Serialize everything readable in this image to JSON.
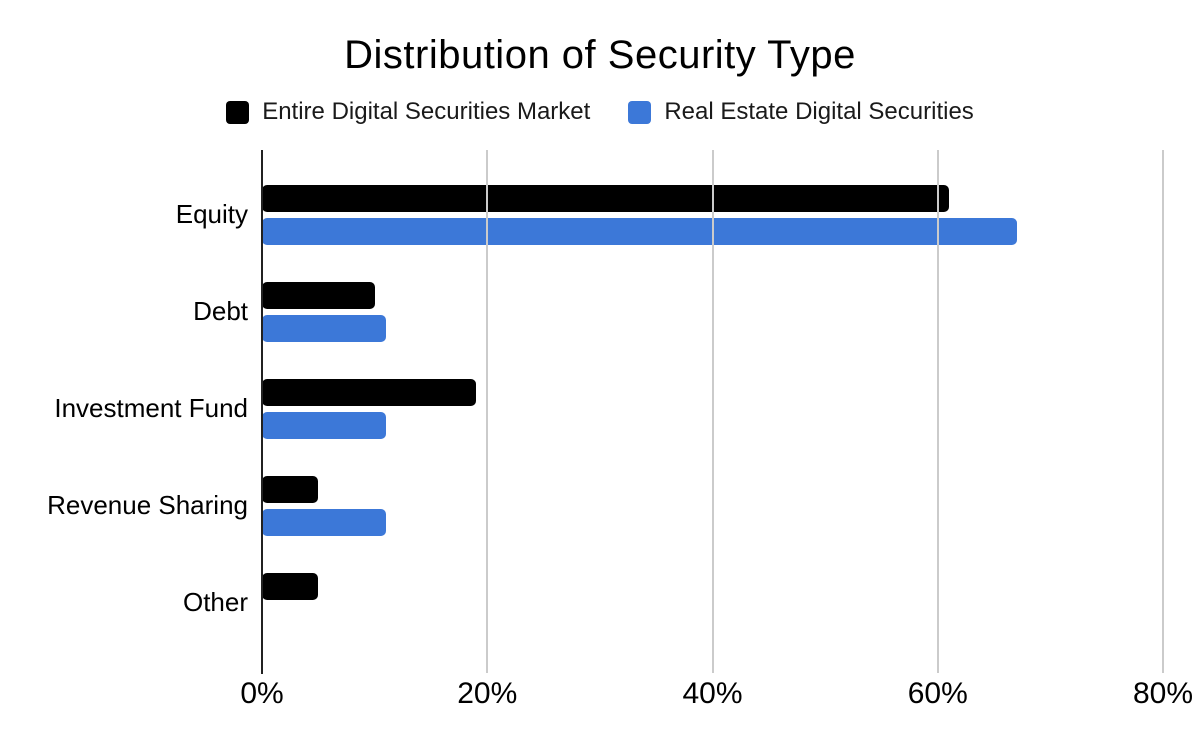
{
  "chart_data": {
    "type": "bar",
    "orientation": "horizontal",
    "title": "Distribution of Security Type",
    "categories": [
      "Equity",
      "Debt",
      "Investment Fund",
      "Revenue Sharing",
      "Other"
    ],
    "series": [
      {
        "name": "Entire Digital Securities Market",
        "color": "#000000",
        "values": [
          61,
          10,
          19,
          5,
          5
        ]
      },
      {
        "name": "Real Estate Digital Securities",
        "color": "#3C78D8",
        "values": [
          67,
          11,
          11,
          11,
          0
        ]
      }
    ],
    "x_axis": {
      "unit": "%",
      "min": 0,
      "max": 80,
      "tick_labels": [
        "0%",
        "20%",
        "40%",
        "60%",
        "80%"
      ]
    },
    "grid": true,
    "legend_position": "top",
    "colors": {
      "gridline": "#cbcbcb",
      "axis_line": "#212121",
      "text": "#000000",
      "background": "#ffffff"
    }
  }
}
